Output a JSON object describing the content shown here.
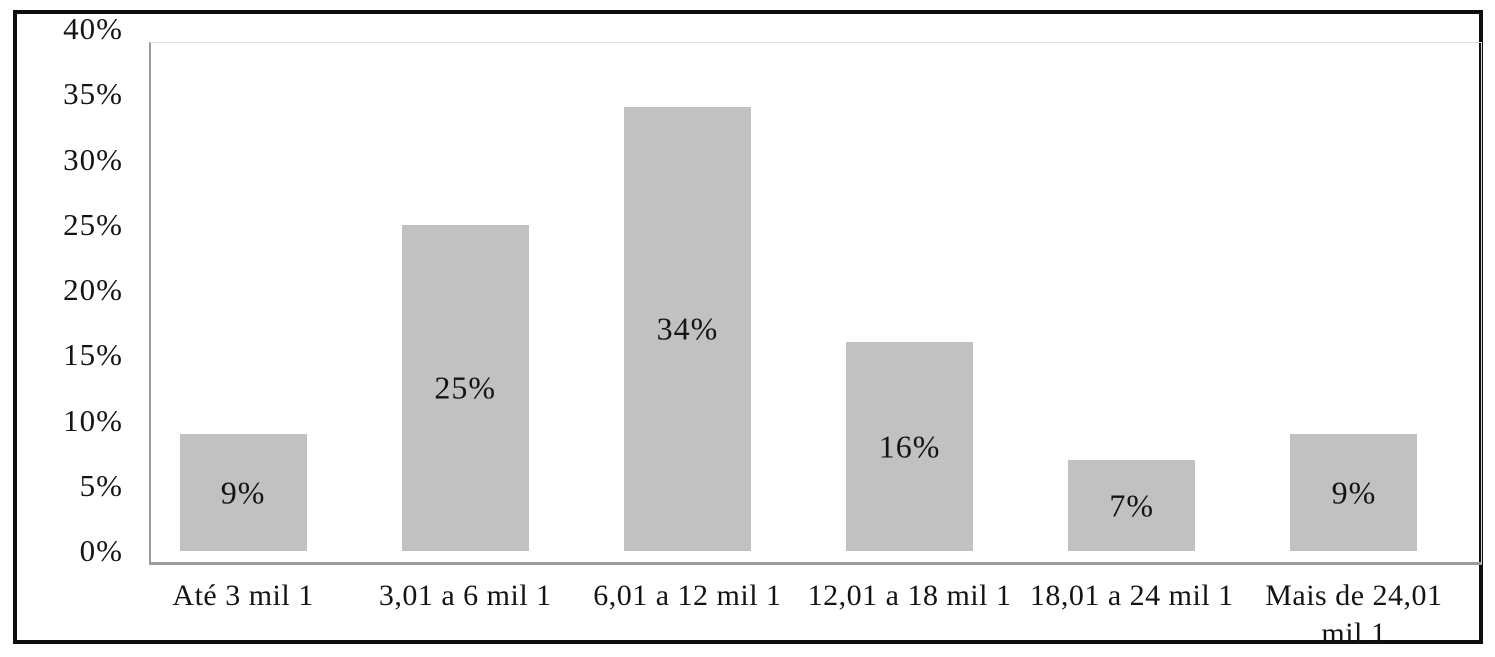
{
  "chart_data": {
    "type": "bar",
    "title": "",
    "xlabel": "",
    "ylabel": "",
    "categories": [
      "Até 3 mil 1",
      "3,01 a 6 mil 1",
      "6,01 a 12 mil 1",
      "12,01 a 18 mil 1",
      "18,01 a 24 mil 1",
      "Mais de 24,01\nmil 1"
    ],
    "values": [
      9,
      25,
      34,
      16,
      7,
      9
    ],
    "value_labels": [
      "9%",
      "25%",
      "34%",
      "16%",
      "7%",
      "9%"
    ],
    "y_ticks": [
      "0%",
      "5%",
      "10%",
      "15%",
      "20%",
      "25%",
      "30%",
      "35%",
      "40%"
    ],
    "ylim": [
      0,
      40
    ],
    "y_tick_step": 5,
    "grid": false,
    "legend": "none",
    "colors": {
      "bar_fill": "#c1c1c1",
      "axis_line": "#9c9c9c",
      "plot_frame_faint": "#dadada",
      "outer_border": "#0e0e0e",
      "text": "#141414",
      "background": "#ffffff"
    }
  }
}
